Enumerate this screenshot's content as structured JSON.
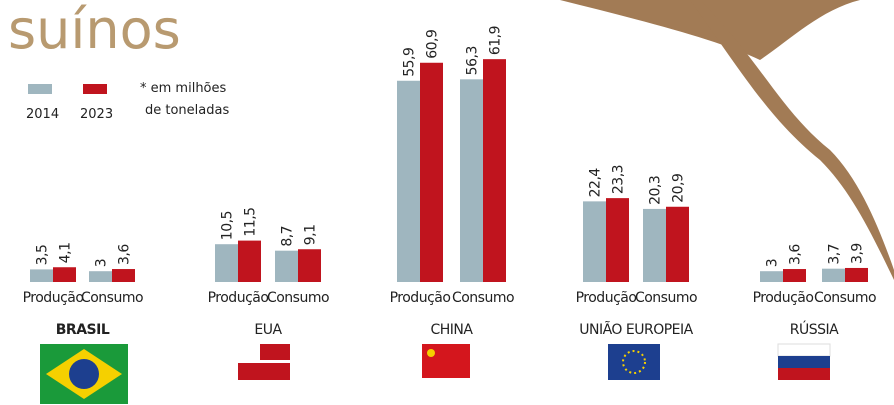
{
  "chart_data": {
    "type": "bar",
    "title": "suínos",
    "note": [
      "* em milhões",
      "de toneladas"
    ],
    "groups": [
      "BRASIL",
      "EUA",
      "CHINA",
      "UNIÃO EUROPEIA",
      "RÚSSIA"
    ],
    "categories": [
      "Produção",
      "Consumo",
      "Produção",
      "Consumo",
      "Produção",
      "Consumo",
      "Produção",
      "Consumo",
      "Produção",
      "Consumo"
    ],
    "series": [
      {
        "name": "2014",
        "color": "#9fb6bf",
        "values": [
          3.5,
          3,
          10.5,
          8.7,
          55.9,
          56.3,
          22.4,
          20.3,
          3,
          3.7
        ],
        "value_labels": [
          "3,5",
          "3",
          "10,5",
          "8,7",
          "55,9",
          "56,3",
          "22,4",
          "20,3",
          "3",
          "3,7"
        ]
      },
      {
        "name": "2023",
        "color": "#c0141e",
        "values": [
          4.1,
          3.6,
          11.5,
          9.1,
          60.9,
          61.9,
          23.3,
          20.9,
          3.6,
          3.9
        ],
        "value_labels": [
          "4,1",
          "3,6",
          "11,5",
          "9,1",
          "60,9",
          "61,9",
          "23,3",
          "20,9",
          "3,6",
          "3,9"
        ]
      }
    ]
  }
}
